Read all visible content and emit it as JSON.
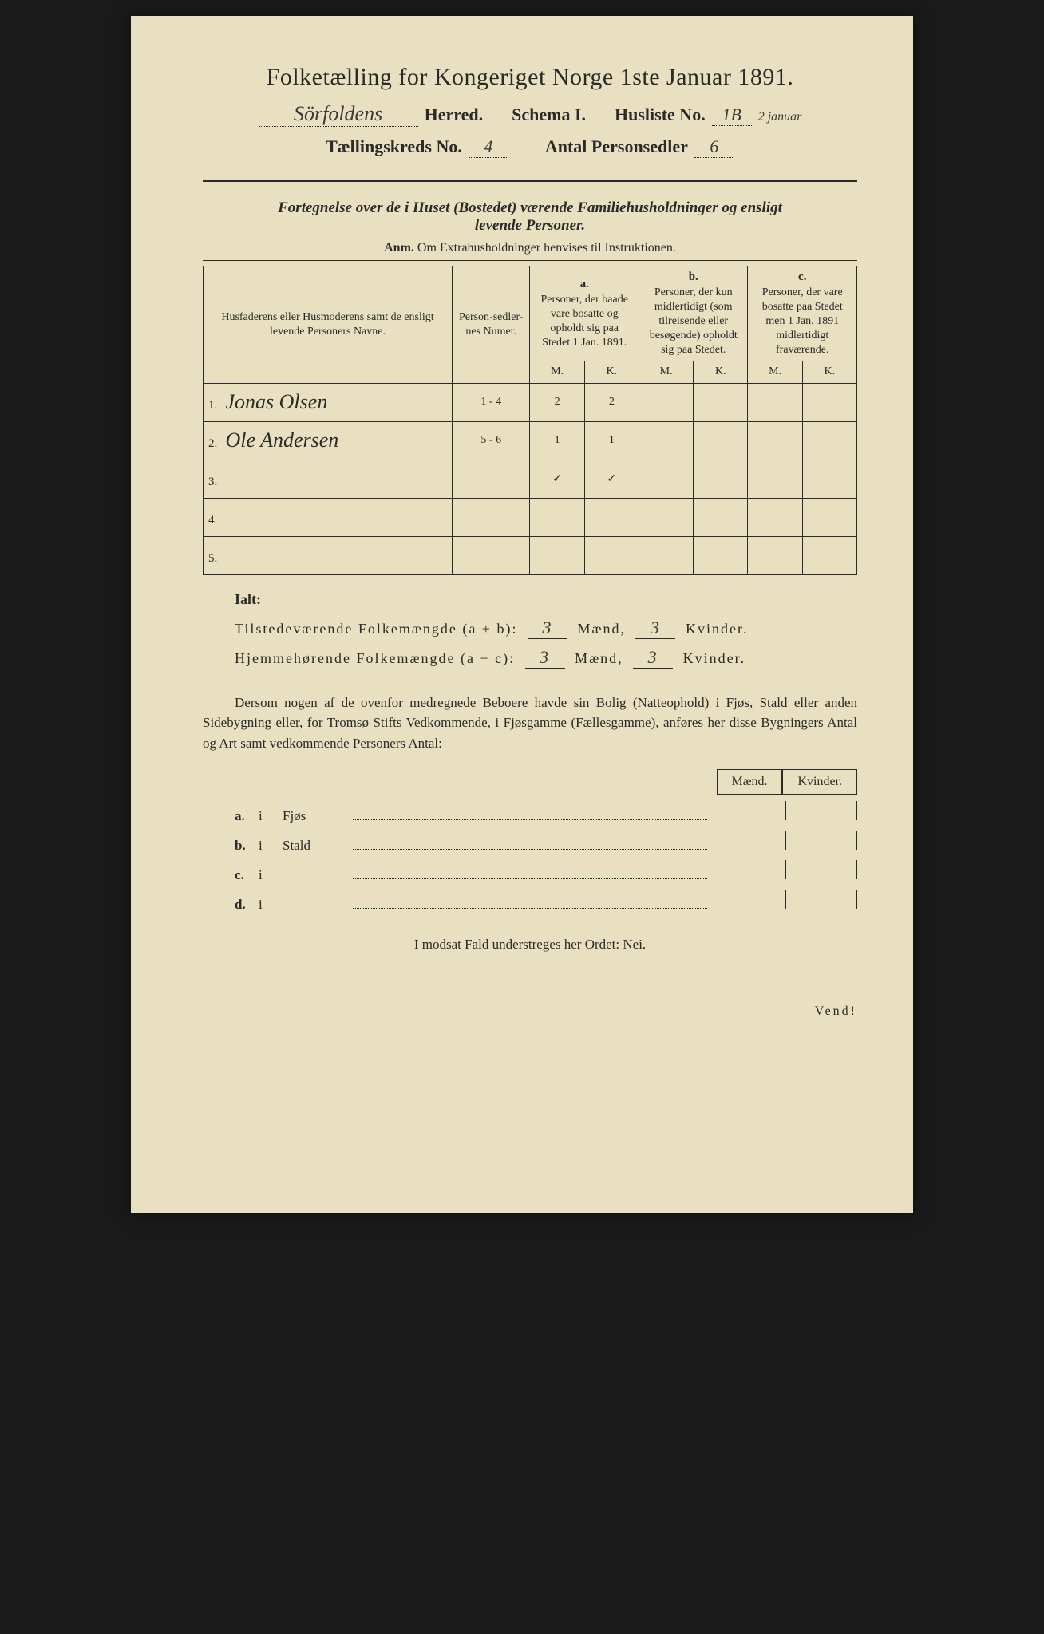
{
  "title": "Folketælling for Kongeriget Norge 1ste Januar 1891.",
  "header": {
    "herred_value": "Sörfoldens",
    "herred_label": "Herred.",
    "schema_label": "Schema I.",
    "husliste_label": "Husliste No.",
    "husliste_value": "1B",
    "husliste_note": "2 januar",
    "kreds_label": "Tællingskreds No.",
    "kreds_value": "4",
    "antal_label": "Antal Personsedler",
    "antal_value": "6"
  },
  "subheader_line1": "Fortegnelse over de i Huset (Bostedet) værende Familiehusholdninger og ensligt",
  "subheader_line2": "levende Personer.",
  "anm_label": "Anm.",
  "anm_text": "Om Extrahusholdninger henvises til Instruktionen.",
  "columns": {
    "name": "Husfaderens eller Husmoderens samt de ensligt levende Personers Navne.",
    "numer": "Person-sedler-nes Numer.",
    "a_label": "a.",
    "a_text": "Personer, der baade vare bosatte og opholdt sig paa Stedet 1 Jan. 1891.",
    "b_label": "b.",
    "b_text": "Personer, der kun midlertidigt (som tilreisende eller besøgende) opholdt sig paa Stedet.",
    "c_label": "c.",
    "c_text": "Personer, der vare bosatte paa Stedet men 1 Jan. 1891 midlertidigt fraværende.",
    "m": "M.",
    "k": "K."
  },
  "rows": [
    {
      "n": "1.",
      "name": "Jonas Olsen",
      "numer": "1 - 4",
      "a_m": "2",
      "a_k": "2",
      "b_m": "",
      "b_k": "",
      "c_m": "",
      "c_k": ""
    },
    {
      "n": "2.",
      "name": "Ole Andersen",
      "numer": "5 - 6",
      "a_m": "1",
      "a_k": "1",
      "b_m": "",
      "b_k": "",
      "c_m": "",
      "c_k": ""
    },
    {
      "n": "3.",
      "name": "",
      "numer": "",
      "a_m": "✓",
      "a_k": "✓",
      "b_m": "",
      "b_k": "",
      "c_m": "",
      "c_k": ""
    },
    {
      "n": "4.",
      "name": "",
      "numer": "",
      "a_m": "",
      "a_k": "",
      "b_m": "",
      "b_k": "",
      "c_m": "",
      "c_k": ""
    },
    {
      "n": "5.",
      "name": "",
      "numer": "",
      "a_m": "",
      "a_k": "",
      "b_m": "",
      "b_k": "",
      "c_m": "",
      "c_k": ""
    }
  ],
  "totals": {
    "ialt": "Ialt:",
    "line1_label": "Tilstedeværende Folkemængde (a + b):",
    "line1_m": "3",
    "line1_k": "3",
    "line2_label": "Hjemmehørende Folkemængde (a + c):",
    "line2_m": "3",
    "line2_k": "3",
    "maend": "Mænd,",
    "kvinder": "Kvinder."
  },
  "paragraph": "Dersom nogen af de ovenfor medregnede Beboere havde sin Bolig (Natteophold) i Fjøs, Stald eller anden Sidebygning eller, for Tromsø Stifts Vedkommende, i Fjøsgamme (Fællesgamme), anføres her disse Bygningers Antal og Art samt vedkommende Personers Antal:",
  "side": {
    "maend": "Mænd.",
    "kvinder": "Kvinder.",
    "rows": [
      {
        "label": "a.",
        "i": "i",
        "what": "Fjøs"
      },
      {
        "label": "b.",
        "i": "i",
        "what": "Stald"
      },
      {
        "label": "c.",
        "i": "i",
        "what": ""
      },
      {
        "label": "d.",
        "i": "i",
        "what": ""
      }
    ]
  },
  "footer": "I modsat Fald understreges her Ordet: Nei.",
  "vend": "Vend!",
  "colors": {
    "paper": "#e8e0c0",
    "ink": "#2a2a2a",
    "background": "#1a1a1a"
  },
  "typography": {
    "title_fontsize": 30,
    "body_fontsize": 17,
    "table_fontsize": 14,
    "handwriting_fontsize": 26
  }
}
